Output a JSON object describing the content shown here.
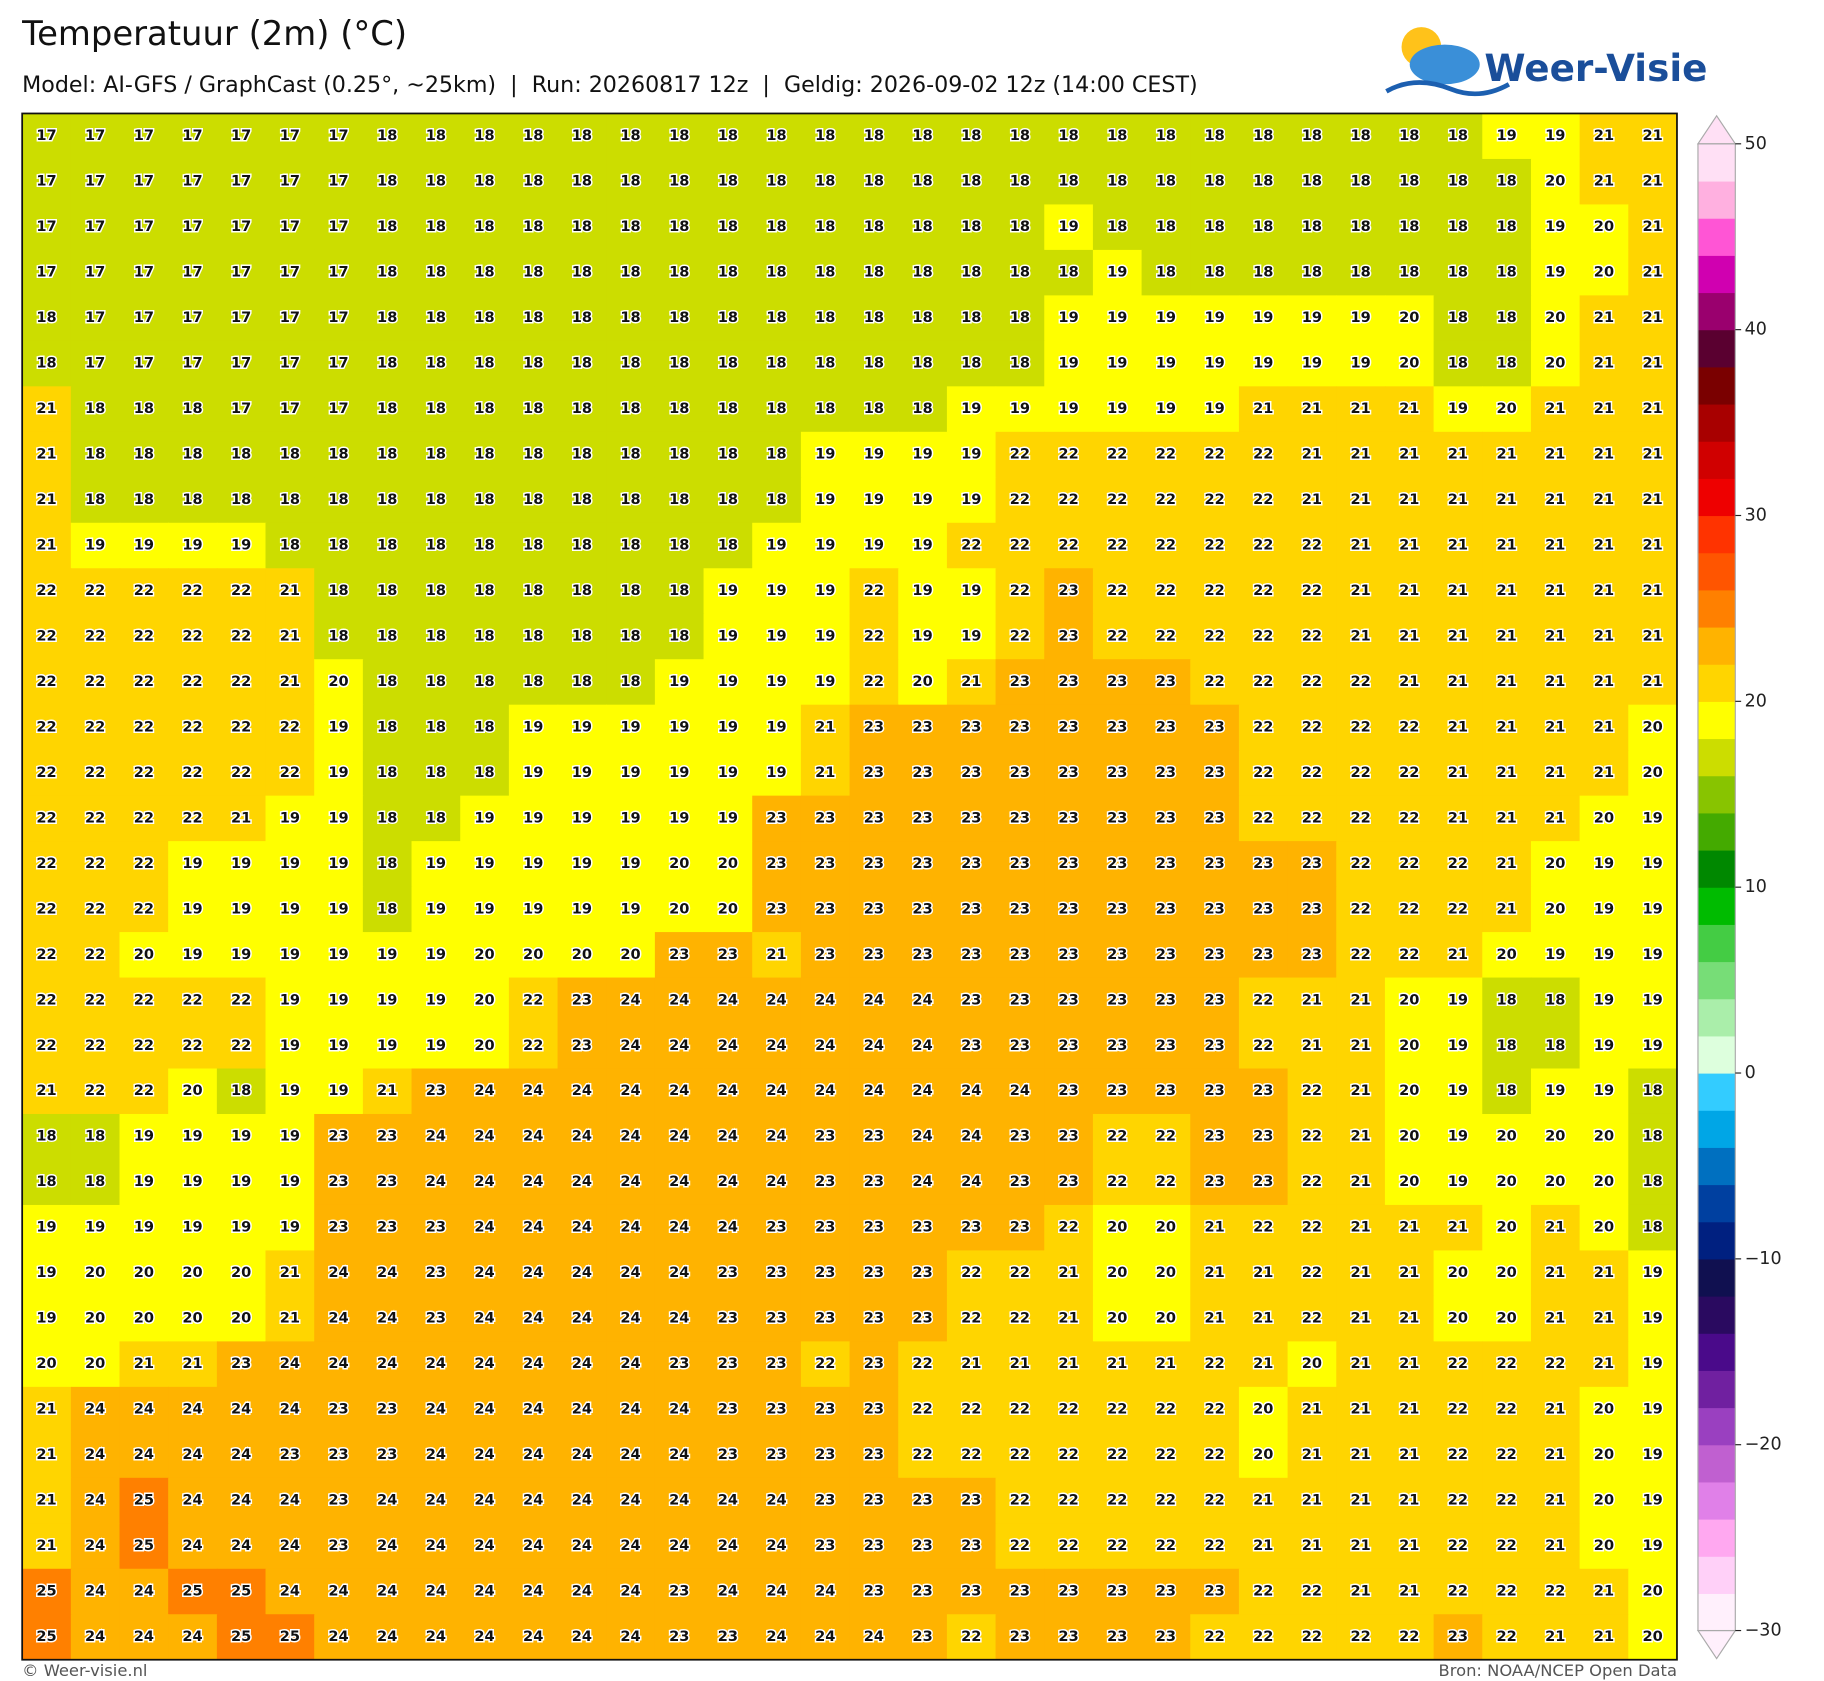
{
  "header": {
    "title": "Temperatuur (2m) (°C)",
    "subtitle": "Model: AI-GFS / GraphCast (0.25°, ~25km)  |  Run: 20260817 12z  |  Geldig: 2026-09-02 12z (14:00 CEST)",
    "logo": "Weer-Visie"
  },
  "chart_data": {
    "type": "heatmap",
    "values": [
      [
        17,
        17,
        17,
        17,
        17,
        17,
        17,
        18,
        18,
        18,
        18,
        18,
        18,
        18,
        18,
        18,
        18,
        18,
        18,
        18,
        18,
        18,
        18,
        18,
        18,
        18,
        18,
        18,
        18,
        18,
        19,
        19,
        21,
        21
      ],
      [
        17,
        17,
        17,
        17,
        17,
        17,
        17,
        18,
        18,
        18,
        18,
        18,
        18,
        18,
        18,
        18,
        18,
        18,
        18,
        18,
        18,
        18,
        18,
        18,
        18,
        18,
        18,
        18,
        18,
        18,
        18,
        20,
        21,
        21
      ],
      [
        17,
        17,
        17,
        17,
        17,
        17,
        17,
        18,
        18,
        18,
        18,
        18,
        18,
        18,
        18,
        18,
        18,
        18,
        18,
        18,
        18,
        19,
        18,
        18,
        18,
        18,
        18,
        18,
        18,
        18,
        18,
        19,
        20,
        21
      ],
      [
        17,
        17,
        17,
        17,
        17,
        17,
        17,
        18,
        18,
        18,
        18,
        18,
        18,
        18,
        18,
        18,
        18,
        18,
        18,
        18,
        18,
        18,
        19,
        18,
        18,
        18,
        18,
        18,
        18,
        18,
        18,
        19,
        20,
        21
      ],
      [
        18,
        17,
        17,
        17,
        17,
        17,
        17,
        18,
        18,
        18,
        18,
        18,
        18,
        18,
        18,
        18,
        18,
        18,
        18,
        18,
        18,
        19,
        19,
        19,
        19,
        19,
        19,
        19,
        20,
        18,
        18,
        20,
        21,
        21
      ],
      [
        18,
        17,
        17,
        17,
        17,
        17,
        17,
        18,
        18,
        18,
        18,
        18,
        18,
        18,
        18,
        18,
        18,
        18,
        18,
        18,
        18,
        19,
        19,
        19,
        19,
        19,
        19,
        19,
        20,
        18,
        18,
        20,
        21,
        21
      ],
      [
        21,
        18,
        18,
        18,
        17,
        17,
        17,
        18,
        18,
        18,
        18,
        18,
        18,
        18,
        18,
        18,
        18,
        18,
        18,
        19,
        19,
        19,
        19,
        19,
        19,
        21,
        21,
        21,
        21,
        19,
        20,
        21,
        21,
        21
      ],
      [
        21,
        18,
        18,
        18,
        18,
        18,
        18,
        18,
        18,
        18,
        18,
        18,
        18,
        18,
        18,
        18,
        19,
        19,
        19,
        19,
        22,
        22,
        22,
        22,
        22,
        22,
        21,
        21,
        21,
        21,
        21,
        21,
        21,
        21
      ],
      [
        21,
        18,
        18,
        18,
        18,
        18,
        18,
        18,
        18,
        18,
        18,
        18,
        18,
        18,
        18,
        18,
        19,
        19,
        19,
        19,
        22,
        22,
        22,
        22,
        22,
        22,
        21,
        21,
        21,
        21,
        21,
        21,
        21,
        21
      ],
      [
        21,
        19,
        19,
        19,
        19,
        18,
        18,
        18,
        18,
        18,
        18,
        18,
        18,
        18,
        18,
        19,
        19,
        19,
        19,
        22,
        22,
        22,
        22,
        22,
        22,
        22,
        22,
        21,
        21,
        21,
        21,
        21,
        21,
        21
      ],
      [
        22,
        22,
        22,
        22,
        22,
        21,
        18,
        18,
        18,
        18,
        18,
        18,
        18,
        18,
        19,
        19,
        19,
        22,
        19,
        19,
        22,
        23,
        22,
        22,
        22,
        22,
        22,
        21,
        21,
        21,
        21,
        21,
        21,
        21
      ],
      [
        22,
        22,
        22,
        22,
        22,
        21,
        18,
        18,
        18,
        18,
        18,
        18,
        18,
        18,
        19,
        19,
        19,
        22,
        19,
        19,
        22,
        23,
        22,
        22,
        22,
        22,
        22,
        21,
        21,
        21,
        21,
        21,
        21,
        21
      ],
      [
        22,
        22,
        22,
        22,
        22,
        21,
        20,
        18,
        18,
        18,
        18,
        18,
        18,
        19,
        19,
        19,
        19,
        22,
        20,
        21,
        23,
        23,
        23,
        23,
        22,
        22,
        22,
        22,
        21,
        21,
        21,
        21,
        21,
        21
      ],
      [
        22,
        22,
        22,
        22,
        22,
        22,
        19,
        18,
        18,
        18,
        19,
        19,
        19,
        19,
        19,
        19,
        21,
        23,
        23,
        23,
        23,
        23,
        23,
        23,
        23,
        22,
        22,
        22,
        22,
        21,
        21,
        21,
        21,
        20
      ],
      [
        22,
        22,
        22,
        22,
        22,
        22,
        19,
        18,
        18,
        18,
        19,
        19,
        19,
        19,
        19,
        19,
        21,
        23,
        23,
        23,
        23,
        23,
        23,
        23,
        23,
        22,
        22,
        22,
        22,
        21,
        21,
        21,
        21,
        20
      ],
      [
        22,
        22,
        22,
        22,
        21,
        19,
        19,
        18,
        18,
        19,
        19,
        19,
        19,
        19,
        19,
        23,
        23,
        23,
        23,
        23,
        23,
        23,
        23,
        23,
        23,
        22,
        22,
        22,
        22,
        21,
        21,
        21,
        20,
        19
      ],
      [
        22,
        22,
        22,
        19,
        19,
        19,
        19,
        18,
        19,
        19,
        19,
        19,
        19,
        20,
        20,
        23,
        23,
        23,
        23,
        23,
        23,
        23,
        23,
        23,
        23,
        23,
        23,
        22,
        22,
        22,
        21,
        20,
        19,
        19
      ],
      [
        22,
        22,
        22,
        19,
        19,
        19,
        19,
        18,
        19,
        19,
        19,
        19,
        19,
        20,
        20,
        23,
        23,
        23,
        23,
        23,
        23,
        23,
        23,
        23,
        23,
        23,
        23,
        22,
        22,
        22,
        21,
        20,
        19,
        19
      ],
      [
        22,
        22,
        20,
        19,
        19,
        19,
        19,
        19,
        19,
        20,
        20,
        20,
        20,
        23,
        23,
        21,
        23,
        23,
        23,
        23,
        23,
        23,
        23,
        23,
        23,
        23,
        23,
        22,
        22,
        21,
        20,
        19,
        19,
        19
      ],
      [
        22,
        22,
        22,
        22,
        22,
        19,
        19,
        19,
        19,
        20,
        22,
        23,
        24,
        24,
        24,
        24,
        24,
        24,
        24,
        23,
        23,
        23,
        23,
        23,
        23,
        22,
        21,
        21,
        20,
        19,
        18,
        18,
        19,
        19
      ],
      [
        22,
        22,
        22,
        22,
        22,
        19,
        19,
        19,
        19,
        20,
        22,
        23,
        24,
        24,
        24,
        24,
        24,
        24,
        24,
        23,
        23,
        23,
        23,
        23,
        23,
        22,
        21,
        21,
        20,
        19,
        18,
        18,
        19,
        19
      ],
      [
        21,
        22,
        22,
        20,
        18,
        19,
        19,
        21,
        23,
        24,
        24,
        24,
        24,
        24,
        24,
        24,
        24,
        24,
        24,
        24,
        24,
        23,
        23,
        23,
        23,
        23,
        22,
        21,
        20,
        19,
        18,
        19,
        19,
        18
      ],
      [
        18,
        18,
        19,
        19,
        19,
        19,
        23,
        23,
        24,
        24,
        24,
        24,
        24,
        24,
        24,
        24,
        23,
        23,
        24,
        24,
        23,
        23,
        22,
        22,
        23,
        23,
        22,
        21,
        20,
        19,
        20,
        20,
        20,
        18
      ],
      [
        18,
        18,
        19,
        19,
        19,
        19,
        23,
        23,
        24,
        24,
        24,
        24,
        24,
        24,
        24,
        24,
        23,
        23,
        24,
        24,
        23,
        23,
        22,
        22,
        23,
        23,
        22,
        21,
        20,
        19,
        20,
        20,
        20,
        18
      ],
      [
        19,
        19,
        19,
        19,
        19,
        19,
        23,
        23,
        23,
        24,
        24,
        24,
        24,
        24,
        24,
        23,
        23,
        23,
        23,
        23,
        23,
        22,
        20,
        20,
        21,
        22,
        22,
        21,
        21,
        21,
        20,
        21,
        20,
        18
      ],
      [
        19,
        20,
        20,
        20,
        20,
        21,
        24,
        24,
        23,
        24,
        24,
        24,
        24,
        24,
        23,
        23,
        23,
        23,
        23,
        22,
        22,
        21,
        20,
        20,
        21,
        21,
        22,
        21,
        21,
        20,
        20,
        21,
        21,
        19
      ],
      [
        19,
        20,
        20,
        20,
        20,
        21,
        24,
        24,
        23,
        24,
        24,
        24,
        24,
        24,
        23,
        23,
        23,
        23,
        23,
        22,
        22,
        21,
        20,
        20,
        21,
        21,
        22,
        21,
        21,
        20,
        20,
        21,
        21,
        19
      ],
      [
        20,
        20,
        21,
        21,
        23,
        24,
        24,
        24,
        24,
        24,
        24,
        24,
        24,
        23,
        23,
        23,
        22,
        23,
        22,
        21,
        21,
        21,
        21,
        21,
        22,
        21,
        20,
        21,
        21,
        22,
        22,
        22,
        21,
        19
      ],
      [
        21,
        24,
        24,
        24,
        24,
        24,
        23,
        23,
        24,
        24,
        24,
        24,
        24,
        24,
        23,
        23,
        23,
        23,
        22,
        22,
        22,
        22,
        22,
        22,
        22,
        20,
        21,
        21,
        21,
        22,
        22,
        21,
        20,
        19
      ],
      [
        21,
        24,
        24,
        24,
        24,
        23,
        23,
        23,
        24,
        24,
        24,
        24,
        24,
        24,
        23,
        23,
        23,
        23,
        22,
        22,
        22,
        22,
        22,
        22,
        22,
        20,
        21,
        21,
        21,
        22,
        22,
        21,
        20,
        19
      ],
      [
        21,
        24,
        25,
        24,
        24,
        24,
        23,
        24,
        24,
        24,
        24,
        24,
        24,
        24,
        24,
        24,
        23,
        23,
        23,
        23,
        22,
        22,
        22,
        22,
        22,
        21,
        21,
        21,
        21,
        22,
        22,
        21,
        20,
        19
      ],
      [
        21,
        24,
        25,
        24,
        24,
        24,
        23,
        24,
        24,
        24,
        24,
        24,
        24,
        24,
        24,
        24,
        23,
        23,
        23,
        23,
        22,
        22,
        22,
        22,
        22,
        21,
        21,
        21,
        21,
        22,
        22,
        21,
        20,
        19
      ],
      [
        25,
        24,
        24,
        25,
        25,
        24,
        24,
        24,
        24,
        24,
        24,
        24,
        24,
        23,
        24,
        24,
        24,
        23,
        23,
        23,
        23,
        23,
        23,
        23,
        23,
        22,
        22,
        21,
        21,
        22,
        22,
        22,
        21,
        20
      ],
      [
        25,
        24,
        24,
        24,
        25,
        25,
        24,
        24,
        24,
        24,
        24,
        24,
        24,
        23,
        23,
        24,
        24,
        24,
        23,
        22,
        23,
        23,
        23,
        23,
        22,
        22,
        22,
        22,
        22,
        23,
        22,
        21,
        21,
        20
      ]
    ],
    "colorbar": {
      "ylim": [
        -30,
        50
      ],
      "yticks": [
        {
          "value": -30,
          "label": "−30"
        },
        {
          "value": -20,
          "label": "−20"
        },
        {
          "value": -10,
          "label": "−10"
        },
        0,
        10,
        20,
        30,
        40,
        50
      ],
      "colors": [
        "#fff0fc",
        "#ffd0f8",
        "#ffa8f0",
        "#e080e8",
        "#c060d0",
        "#9a40c0",
        "#7020a0",
        "#4a0a8a",
        "#2a0a60",
        "#101050",
        "#002080",
        "#0040a0",
        "#0070c0",
        "#00a6e6",
        "#33ccff",
        "#ddffdd",
        "#aaeeaa",
        "#77dd77",
        "#44cc44",
        "#00bb00",
        "#008800",
        "#44aa00",
        "#88c400",
        "#ccdd00",
        "#ffff00",
        "#ffd500",
        "#ffb300",
        "#ff8000",
        "#ff5500",
        "#ff3300",
        "#ee0000",
        "#d00000",
        "#a80000",
        "#7a0000",
        "#5a0030",
        "#9a006e",
        "#d000b0",
        "#ff55d5",
        "#ffb0e0",
        "#ffe0f5"
      ]
    }
  },
  "footer": {
    "left": "© Weer-visie.nl",
    "right": "Bron: NOAA/NCEP Open Data"
  }
}
